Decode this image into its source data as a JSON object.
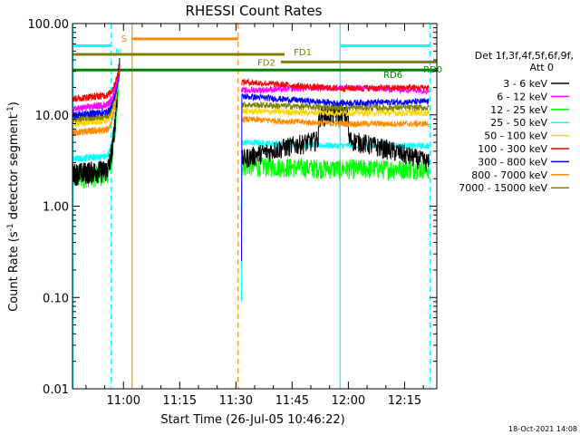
{
  "chart_data": {
    "type": "line",
    "title": "RHESSI Count Rates",
    "xlabel": "Start Time (26-Jul-05 10:46:22)",
    "ylabel_main": "Count Rate (s",
    "ylabel_sup1": "-1",
    "ylabel_mid": " detector segment",
    "ylabel_sup2": "-1",
    "ylabel_end": ")",
    "yscale": "log",
    "ylim": [
      0.01,
      100
    ],
    "xlim_minutes": [
      46.4,
      143.6
    ],
    "x_ticks": [
      {
        "label": "11:00",
        "minute": 60
      },
      {
        "label": "11:15",
        "minute": 75
      },
      {
        "label": "11:30",
        "minute": 90
      },
      {
        "label": "11:45",
        "minute": 105
      },
      {
        "label": "12:00",
        "minute": 120
      },
      {
        "label": "12:15",
        "minute": 135
      }
    ],
    "y_ticks": [
      {
        "label": "100.00",
        "value": 100
      },
      {
        "label": "10.00",
        "value": 10
      },
      {
        "label": "1.00",
        "value": 1
      },
      {
        "label": "0.10",
        "value": 0.1
      },
      {
        "label": "0.01",
        "value": 0.01
      }
    ],
    "legend": {
      "header1": "Det 1f,3f,4f,5f,6f,9f,",
      "header2": "Att 0",
      "placement": "right"
    },
    "series": [
      {
        "name": "3 - 6 keV",
        "color": "#000000",
        "pre": [
          2.3,
          2.6,
          50
        ],
        "post": [
          3.3,
          5.8,
          3.0
        ]
      },
      {
        "name": "6 - 12 keV",
        "color": "#ff00ff",
        "pre": [
          11.5,
          13.5,
          34
        ],
        "post": [
          18.5,
          20.0,
          18.5
        ]
      },
      {
        "name": "12 - 25 keV",
        "color": "#00ff00",
        "pre": [
          2.1,
          2.4,
          34
        ],
        "post": [
          2.8,
          2.6,
          2.6
        ]
      },
      {
        "name": "25 - 50 keV",
        "color": "#00ffff",
        "pre": [
          3.3,
          3.6,
          34
        ],
        "post": [
          5.0,
          4.6,
          4.6
        ]
      },
      {
        "name": "50 - 100 keV",
        "color": "#ffd700",
        "pre": [
          8.0,
          9.0,
          32
        ],
        "post": [
          11.0,
          10.5,
          10.5
        ]
      },
      {
        "name": "100 - 300 keV",
        "color": "#ff0000",
        "pre": [
          15.0,
          17.0,
          34
        ],
        "post": [
          23.0,
          19.5,
          20.0
        ]
      },
      {
        "name": "300 - 800 keV",
        "color": "#0000ff",
        "pre": [
          10.0,
          11.0,
          32
        ],
        "post": [
          16.0,
          13.5,
          14.0
        ]
      },
      {
        "name": "800 - 7000 keV",
        "color": "#ff8c00",
        "pre": [
          6.4,
          7.0,
          32
        ],
        "post": [
          9.0,
          8.0,
          8.0
        ]
      },
      {
        "name": "7000 - 15000 keV",
        "color": "#808000",
        "pre": [
          9.0,
          10.0,
          30
        ],
        "post": [
          13.0,
          12.0,
          12.0
        ]
      }
    ],
    "vertical_lines": [
      {
        "minute": 46.5,
        "color": "#00ffff",
        "style": "solid"
      },
      {
        "minute": 56.7,
        "color": "#00ffff",
        "style": "dashed"
      },
      {
        "minute": 62.3,
        "color": "#ff8c00",
        "style": "solid"
      },
      {
        "minute": 90.6,
        "color": "#ff8c00",
        "style": "dashed"
      },
      {
        "minute": 117.8,
        "color": "#00ffff",
        "style": "solid"
      },
      {
        "minute": 141.8,
        "color": "#00ffff",
        "style": "dashed"
      }
    ],
    "flag_bars": [
      {
        "label": "S",
        "color": "#ff8c00",
        "start": 62.3,
        "end": 90.6,
        "value": 68
      },
      {
        "label": "N",
        "color": "#00ffff",
        "start": 46.5,
        "end": 56.7,
        "value": 57
      },
      {
        "label": "",
        "color": "#00ffff",
        "start": 117.8,
        "end": 141.8,
        "value": 57
      },
      {
        "label": "FD1",
        "color": "#808000",
        "start": 46.5,
        "end": 103.0,
        "value": 46
      },
      {
        "label": "FD2",
        "color": "#808000",
        "start": 102.0,
        "end": 143.5,
        "value": 38
      },
      {
        "label": "RD6",
        "color": "#008000",
        "start": 46.5,
        "end": 143.5,
        "value": 31
      },
      {
        "label": "RD0",
        "color": "#008000",
        "start": 142.5,
        "end": 143.5,
        "value": 31
      }
    ],
    "gap_minutes": [
      59.0,
      91.5
    ]
  },
  "footer": {
    "timestamp": "18-Oct-2021 14:08"
  }
}
